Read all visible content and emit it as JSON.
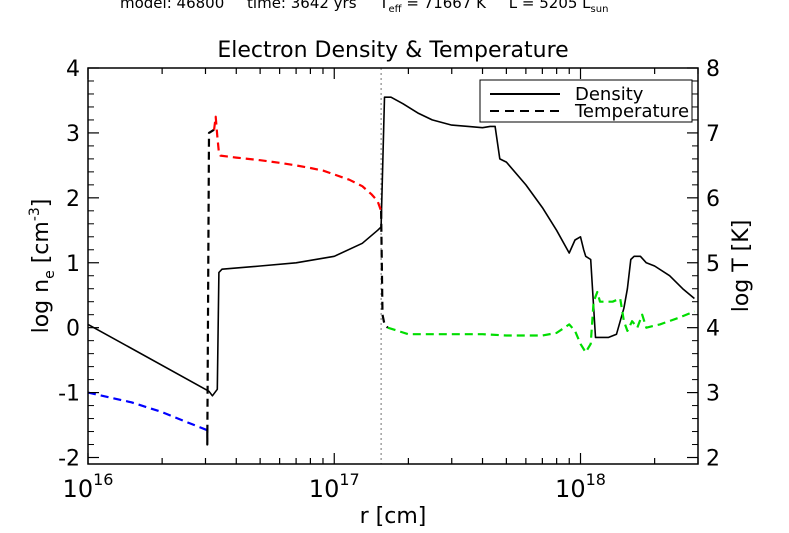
{
  "header": {
    "model_label": "model: 46800",
    "time_label": "time: 3642 yrs",
    "teff_label": "T",
    "teff_sub": "eff",
    "teff_value": " = 71667 K",
    "lum_label": "L = 5205 L",
    "lum_sub": "sun"
  },
  "chart_data": {
    "type": "line",
    "title": "Electron Density & Temperature",
    "xlabel": "r [cm]",
    "ylabel_left": "log n",
    "ylabel_left_sub": "e",
    "ylabel_left_unit": " [cm",
    "ylabel_left_sup": "-3",
    "ylabel_left_end": "]",
    "ylabel_right": "log T [K]",
    "xscale": "log",
    "xlim": [
      1e+16,
      3e+18
    ],
    "ylim_left": [
      -2.1,
      4.0
    ],
    "ylim_right": [
      1.9,
      8.0
    ],
    "xticks": [
      {
        "value": 1e+16,
        "base": "10",
        "exp": "16"
      },
      {
        "value": 1e+17,
        "base": "10",
        "exp": "17"
      },
      {
        "value": 1e+18,
        "base": "10",
        "exp": "18"
      }
    ],
    "yticks_left": [
      "-2",
      "-1",
      "0",
      "1",
      "2",
      "3",
      "4"
    ],
    "yticks_right": [
      "2",
      "3",
      "4",
      "5",
      "6",
      "7",
      "8"
    ],
    "vline_x": 1.55e+17,
    "legend": {
      "position": "top-right",
      "entries": [
        {
          "label": "Density",
          "style": "solid"
        },
        {
          "label": "Temperature",
          "style": "dashed"
        }
      ]
    },
    "series": [
      {
        "name": "Density",
        "axis": "left",
        "style": "solid",
        "color": "#000000",
        "segments": [
          {
            "x": [
              1e+16,
              3.1e+16,
              3.2e+16,
              3.35e+16,
              3.4e+16,
              3.5e+16,
              5e+16,
              7e+16,
              1e+17,
              1.3e+17,
              1.5e+17,
              1.55e+17,
              1.6e+17,
              1.7e+17,
              1.9e+17,
              2.2e+17,
              2.5e+17,
              3e+17,
              3.5e+17,
              4e+17,
              4.3e+17,
              4.5e+17,
              4.7e+17,
              5e+17,
              6e+17,
              7e+17,
              8e+17,
              9e+17,
              9.5e+17,
              1e+18,
              1.03e+18,
              1.05e+18,
              1.1e+18,
              1.15e+18,
              1.2e+18,
              1.3e+18,
              1.4e+18,
              1.5e+18,
              1.55e+18,
              1.6e+18,
              1.65e+18,
              1.75e+18,
              1.85e+18,
              2e+18,
              2.3e+18,
              2.6e+18,
              2.9e+18
            ],
            "y": [
              0.05,
              -0.98,
              -1.05,
              -0.95,
              0.85,
              0.9,
              0.95,
              1.0,
              1.1,
              1.3,
              1.5,
              1.55,
              3.55,
              3.55,
              3.45,
              3.3,
              3.2,
              3.12,
              3.1,
              3.08,
              3.1,
              3.1,
              2.6,
              2.55,
              2.2,
              1.85,
              1.5,
              1.15,
              1.35,
              1.4,
              1.2,
              1.1,
              1.05,
              -0.15,
              -0.15,
              -0.15,
              -0.1,
              0.3,
              0.6,
              1.05,
              1.1,
              1.1,
              1.0,
              0.95,
              0.8,
              0.6,
              0.45
            ]
          }
        ]
      },
      {
        "name": "Temperature",
        "axis": "right",
        "style": "dashed",
        "colored_segments": [
          {
            "color": "#0000ff",
            "x": [
              1e+16,
              1.5e+16,
              2e+16,
              2.5e+16,
              3.05e+16
            ],
            "y": [
              3.0,
              2.85,
              2.7,
              2.55,
              2.42
            ]
          },
          {
            "color": "#000000",
            "x": [
              3.05e+16,
              3.05e+16,
              3.1e+16,
              3.25e+16
            ],
            "y": [
              2.42,
              2.2,
              7.0,
              7.05
            ]
          },
          {
            "color": "#ff0000",
            "x": [
              3.25e+16,
              3.3e+16,
              3.35e+16,
              3.4e+16,
              3.45e+16,
              4e+16,
              5e+16,
              6e+16,
              7e+16,
              8e+16,
              9e+16,
              1e+17,
              1.15e+17,
              1.3e+17,
              1.42e+17,
              1.5e+17,
              1.55e+17
            ],
            "y": [
              7.05,
              7.25,
              6.95,
              6.7,
              6.65,
              6.62,
              6.58,
              6.54,
              6.5,
              6.46,
              6.42,
              6.36,
              6.28,
              6.18,
              6.05,
              5.95,
              5.8
            ]
          },
          {
            "color": "#000000",
            "x": [
              1.55e+17,
              1.57e+17,
              1.6e+17,
              1.65e+17
            ],
            "y": [
              5.8,
              4.2,
              4.05,
              4.0
            ]
          },
          {
            "color": "#00dd00",
            "x": [
              1.65e+17,
              2e+17,
              3e+17,
              4e+17,
              5e+17,
              6e+17,
              7e+17,
              8e+17,
              9e+17,
              9.5e+17,
              1e+18,
              1.05e+18,
              1.1e+18,
              1.13e+18,
              1.17e+18,
              1.2e+18,
              1.25e+18,
              1.35e+18,
              1.45e+18,
              1.5e+18,
              1.55e+18,
              1.62e+18,
              1.7e+18,
              1.78e+18,
              1.85e+18,
              2.1e+18,
              2.5e+18,
              2.9e+18
            ],
            "y": [
              4.0,
              3.9,
              3.9,
              3.9,
              3.88,
              3.88,
              3.88,
              3.92,
              4.05,
              3.95,
              3.75,
              3.62,
              3.75,
              4.4,
              4.55,
              4.4,
              4.4,
              4.4,
              4.45,
              4.1,
              3.95,
              4.1,
              4.0,
              4.2,
              4.0,
              4.05,
              4.15,
              4.25
            ]
          }
        ]
      }
    ]
  }
}
